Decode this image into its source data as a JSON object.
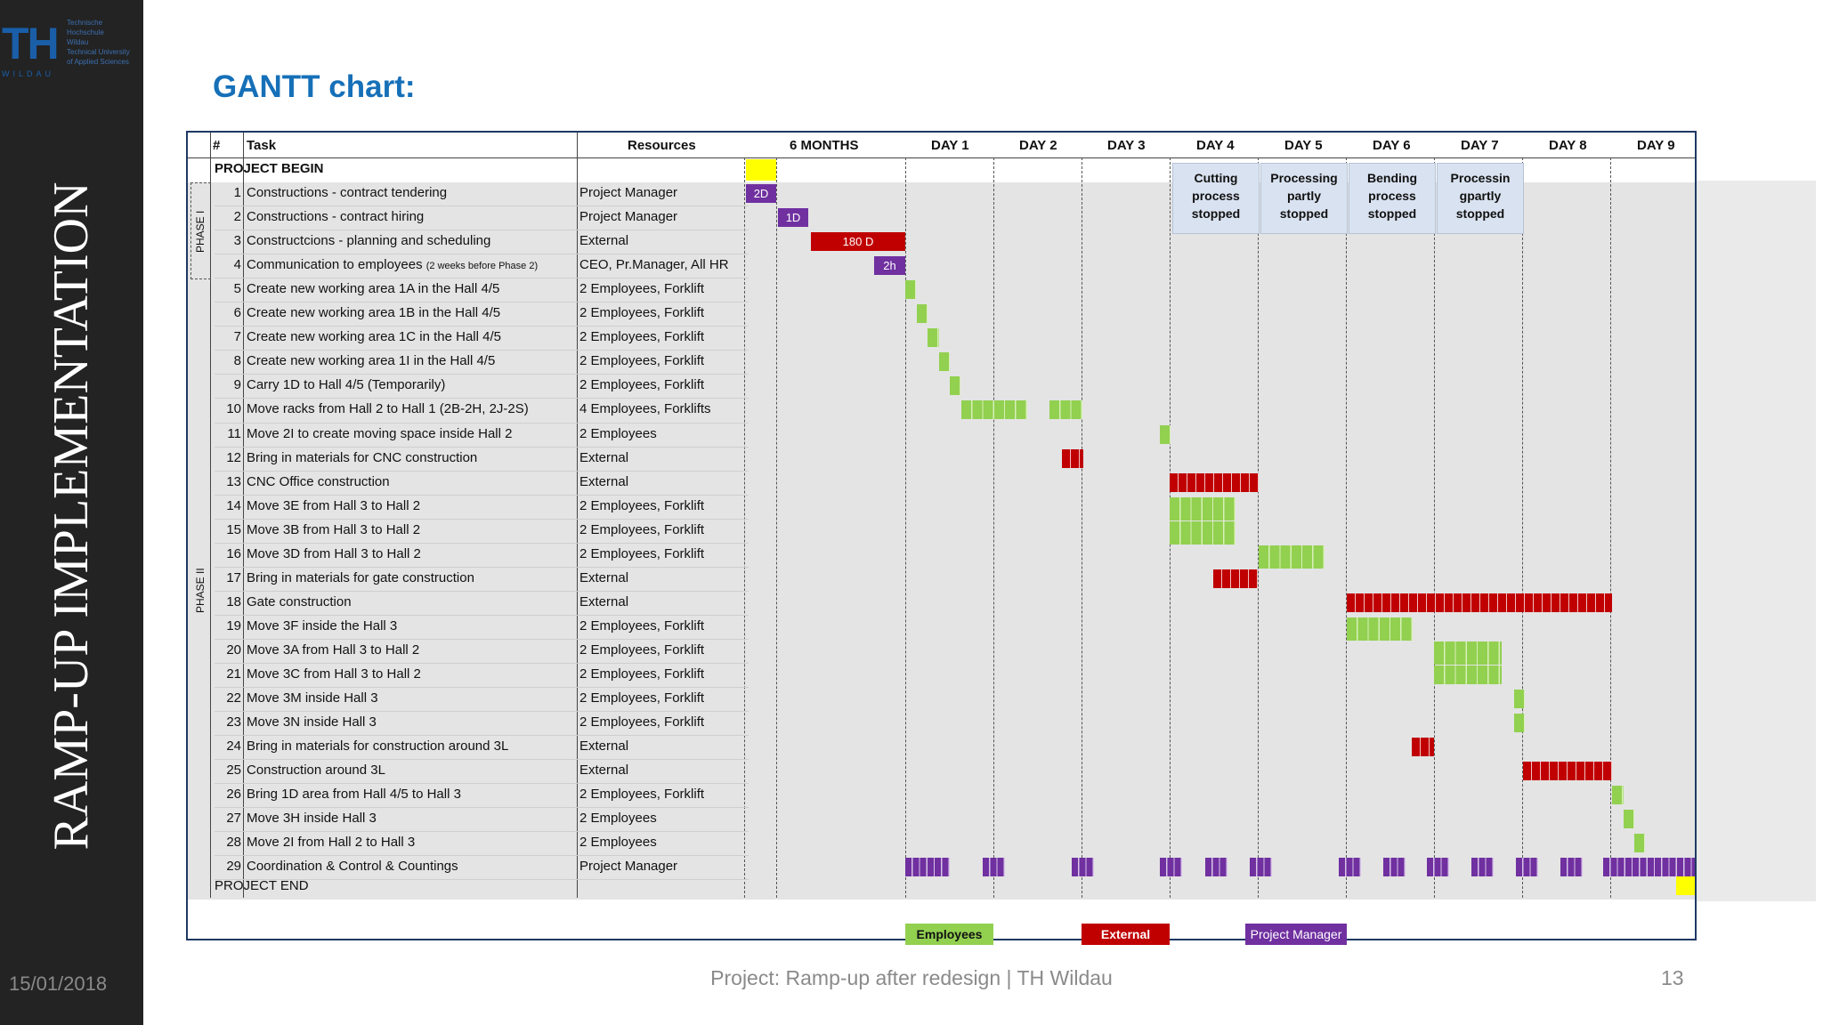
{
  "logo": {
    "mark": "TH",
    "wildau": "WILDAU",
    "university": [
      "Technische",
      "Hochschule",
      "Wildau",
      "Technical University",
      "of Applied Sciences"
    ]
  },
  "sidebar_title": "RAMP-UP IMPLEMENTATION",
  "date": "15/01/2018",
  "title": "GANTT chart:",
  "footer": "Project: Ramp-up after redesign | TH Wildau",
  "page_number": "13",
  "header": {
    "num": "#",
    "task": "Task",
    "resources": "Resources",
    "months": "6 MONTHS",
    "days": [
      "DAY 1",
      "DAY 2",
      "DAY 3",
      "DAY 4",
      "DAY 5",
      "DAY 6",
      "DAY 7",
      "DAY 8",
      "DAY 9"
    ]
  },
  "project_begin": "PROJECT BEGIN",
  "project_end": "PROJECT END",
  "phases": [
    "PHASE I",
    "PHASE II"
  ],
  "stop_notes": [
    {
      "day": "DAY 4",
      "lines": [
        "Cutting",
        "process",
        "stopped"
      ]
    },
    {
      "day": "DAY 5",
      "lines": [
        "Processing",
        "partly",
        "stopped"
      ]
    },
    {
      "day": "DAY 6",
      "lines": [
        "Bending",
        "process",
        "stopped"
      ]
    },
    {
      "day": "DAY 7",
      "lines": [
        "Processin",
        "gpartly",
        "stopped"
      ]
    }
  ],
  "tasks": [
    {
      "n": "1",
      "task": "Constructions - contract tendering",
      "res": "Project Manager"
    },
    {
      "n": "2",
      "task": "Constructions - contract hiring",
      "res": "Project Manager"
    },
    {
      "n": "3",
      "task": "Constructcions - planning and scheduling",
      "res": "External"
    },
    {
      "n": "4",
      "task": "Communication to employees",
      "note": "(2 weeks before Phase 2)",
      "res": "CEO, Pr.Manager, All HR"
    },
    {
      "n": "5",
      "task": "Create new working area 1A in the Hall 4/5",
      "res": "2 Employees, Forklift"
    },
    {
      "n": "6",
      "task": "Create new working area 1B in the Hall 4/5",
      "res": "2 Employees, Forklift"
    },
    {
      "n": "7",
      "task": "Create new working area 1C in the Hall 4/5",
      "res": "2 Employees, Forklift"
    },
    {
      "n": "8",
      "task": "Create new working area 1I in the Hall 4/5",
      "res": "2 Employees, Forklift"
    },
    {
      "n": "9",
      "task": "Carry 1D to Hall 4/5 (Temporarily)",
      "res": "2 Employees, Forklift"
    },
    {
      "n": "10",
      "task": "Move racks from Hall 2 to Hall 1 (2B-2H, 2J-2S)",
      "res": "4 Employees, Forklifts"
    },
    {
      "n": "11",
      "task": "Move 2I to create moving space inside Hall 2",
      "res": "2 Employees"
    },
    {
      "n": "12",
      "task": "Bring in materials for CNC construction",
      "res": "External"
    },
    {
      "n": "13",
      "task": "CNC Office construction",
      "res": "External"
    },
    {
      "n": "14",
      "task": "Move 3E from Hall 3 to Hall 2",
      "res": "2 Employees, Forklift"
    },
    {
      "n": "15",
      "task": "Move 3B from Hall 3 to Hall 2",
      "res": "2 Employees, Forklift"
    },
    {
      "n": "16",
      "task": "Move 3D from Hall 3 to Hall 2",
      "res": "2 Employees, Forklift"
    },
    {
      "n": "17",
      "task": "Bring in materials for gate construction",
      "res": "External"
    },
    {
      "n": "18",
      "task": "Gate construction",
      "res": "External"
    },
    {
      "n": "19",
      "task": "Move 3F inside the Hall 3",
      "res": "2 Employees, Forklift"
    },
    {
      "n": "20",
      "task": "Move 3A from Hall 3 to Hall 2",
      "res": "2 Employees, Forklift"
    },
    {
      "n": "21",
      "task": "Move 3C from Hall 3 to Hall 2",
      "res": "2 Employees, Forklift"
    },
    {
      "n": "22",
      "task": "Move 3M inside Hall 3",
      "res": "2 Employees, Forklift"
    },
    {
      "n": "23",
      "task": "Move 3N inside Hall 3",
      "res": "2 Employees, Forklift"
    },
    {
      "n": "24",
      "task": "Bring in materials for construction around 3L",
      "res": "External"
    },
    {
      "n": "25",
      "task": "Construction around 3L",
      "res": "External"
    },
    {
      "n": "26",
      "task": "Bring 1D area from Hall 4/5 to Hall 3",
      "res": "2 Employees, Forklift"
    },
    {
      "n": "27",
      "task": "Move 3H inside Hall 3",
      "res": "2 Employees"
    },
    {
      "n": "28",
      "task": "Move 2I from Hall 2 to Hall 3",
      "res": "2 Employees"
    },
    {
      "n": "29",
      "task": "Coordination & Control & Countings",
      "res": "Project Manager"
    }
  ],
  "bar_labels": {
    "t1": "2D",
    "t2": "1D",
    "t3": "180 D",
    "t4": "2h"
  },
  "legend": {
    "employees": "Employees",
    "external": "External",
    "pm": "Project Manager"
  },
  "colors": {
    "employees": "#92d050",
    "external": "#c00000",
    "pm": "#7030a0",
    "milestone": "#ffff00",
    "title": "#1670b8"
  }
}
